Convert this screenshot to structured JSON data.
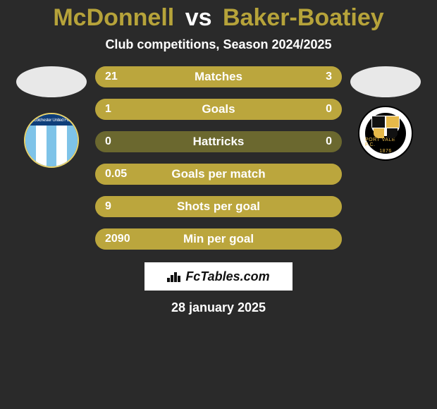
{
  "title": {
    "player1": "McDonnell",
    "vs": "vs",
    "player2": "Baker-Boatiey",
    "fontsize": 34,
    "color_players": "#b6a33a",
    "color_vs": "#ffffff"
  },
  "subtitle": "Club competitions, Season 2024/2025",
  "left_team": {
    "name": "Colchester United FC",
    "badge_bg": "#1e66c7",
    "badge_border": "#e9d36b",
    "stripe_colors": [
      "#7ec3e8",
      "#ffffff",
      "#7ec3e8",
      "#ffffff",
      "#7ec3e8"
    ]
  },
  "right_team": {
    "name": "Port Vale FC",
    "badge_bg": "#ffffff",
    "inner_bg": "#000000",
    "accent": "#e6b94a",
    "year": "1876"
  },
  "bars": {
    "track_color": "#6b682f",
    "left_color": "#bba63d",
    "right_color": "#bba63d",
    "label_color": "#ffffff",
    "height": 30,
    "radius": 15,
    "fontsize_label": 17,
    "fontsize_value": 16,
    "items": [
      {
        "label": "Matches",
        "left_val": "21",
        "right_val": "3",
        "left_pct": 87.5,
        "right_pct": 12.5
      },
      {
        "label": "Goals",
        "left_val": "1",
        "right_val": "0",
        "left_pct": 100,
        "right_pct": 0
      },
      {
        "label": "Hattricks",
        "left_val": "0",
        "right_val": "0",
        "left_pct": 0,
        "right_pct": 0
      },
      {
        "label": "Goals per match",
        "left_val": "0.05",
        "right_val": "",
        "left_pct": 100,
        "right_pct": 0
      },
      {
        "label": "Shots per goal",
        "left_val": "9",
        "right_val": "",
        "left_pct": 100,
        "right_pct": 0
      },
      {
        "label": "Min per goal",
        "left_val": "2090",
        "right_val": "",
        "left_pct": 100,
        "right_pct": 0
      }
    ]
  },
  "footer": {
    "brand": "FcTables.com",
    "date": "28 january 2025",
    "bg": "#ffffff",
    "text_color": "#111111"
  },
  "background_color": "#2a2a2a"
}
